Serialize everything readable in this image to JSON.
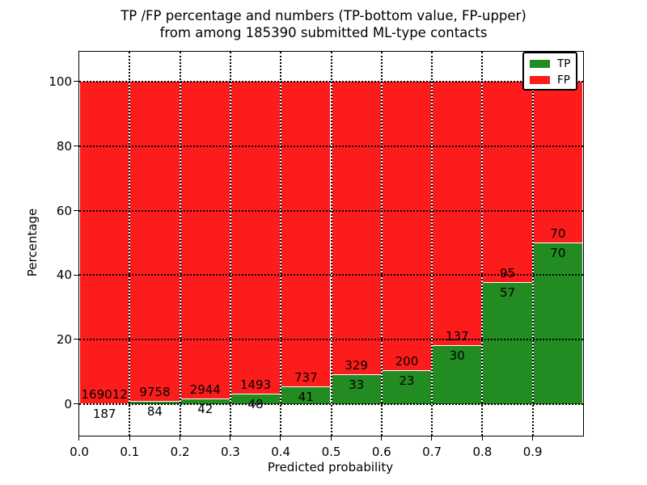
{
  "figure": {
    "title_line1": "TP /FP percentage and numbers (TP-bottom value, FP-upper)",
    "title_line2": "from among 185390 submitted ML-type contacts"
  },
  "chart_data": {
    "type": "bar",
    "variant": "stacked-percentage-normalized",
    "title": "TP /FP percentage and numbers (TP-bottom value, FP-upper) from among 185390 submitted ML-type contacts",
    "xlabel": "Predicted probability",
    "ylabel": "Percentage",
    "total_contacts": 185390,
    "categories": [
      "0.0-0.1",
      "0.1-0.2",
      "0.2-0.3",
      "0.3-0.4",
      "0.4-0.5",
      "0.5-0.6",
      "0.6-0.7",
      "0.7-0.8",
      "0.8-0.9",
      "0.9-1.0"
    ],
    "series": [
      {
        "name": "TP",
        "color": "#228b22",
        "counts": [
          187,
          84,
          42,
          48,
          41,
          33,
          23,
          30,
          57,
          70
        ]
      },
      {
        "name": "FP",
        "color": "#fd1c1c",
        "counts": [
          169012,
          9758,
          2944,
          1493,
          737,
          329,
          200,
          137,
          95,
          70
        ]
      }
    ],
    "tp_percent_of_bin": [
      0.11,
      0.85,
      1.41,
      3.11,
      5.27,
      9.12,
      10.31,
      17.96,
      37.5,
      50.0
    ],
    "x_tick_labels": [
      "0.0",
      "0.1",
      "0.2",
      "0.3",
      "0.4",
      "0.5",
      "0.6",
      "0.7",
      "0.8",
      "0.9"
    ],
    "y_tick_values": [
      0,
      20,
      40,
      60,
      80,
      100
    ],
    "xlim": [
      0.0,
      1.0
    ],
    "ylim": [
      -10,
      109.3
    ],
    "grid": "dotted-black-both-axes",
    "legend": {
      "position": "upper-right",
      "entries": [
        {
          "label": "TP",
          "color": "#228b22"
        },
        {
          "label": "FP",
          "color": "#fd1c1c"
        }
      ]
    }
  }
}
